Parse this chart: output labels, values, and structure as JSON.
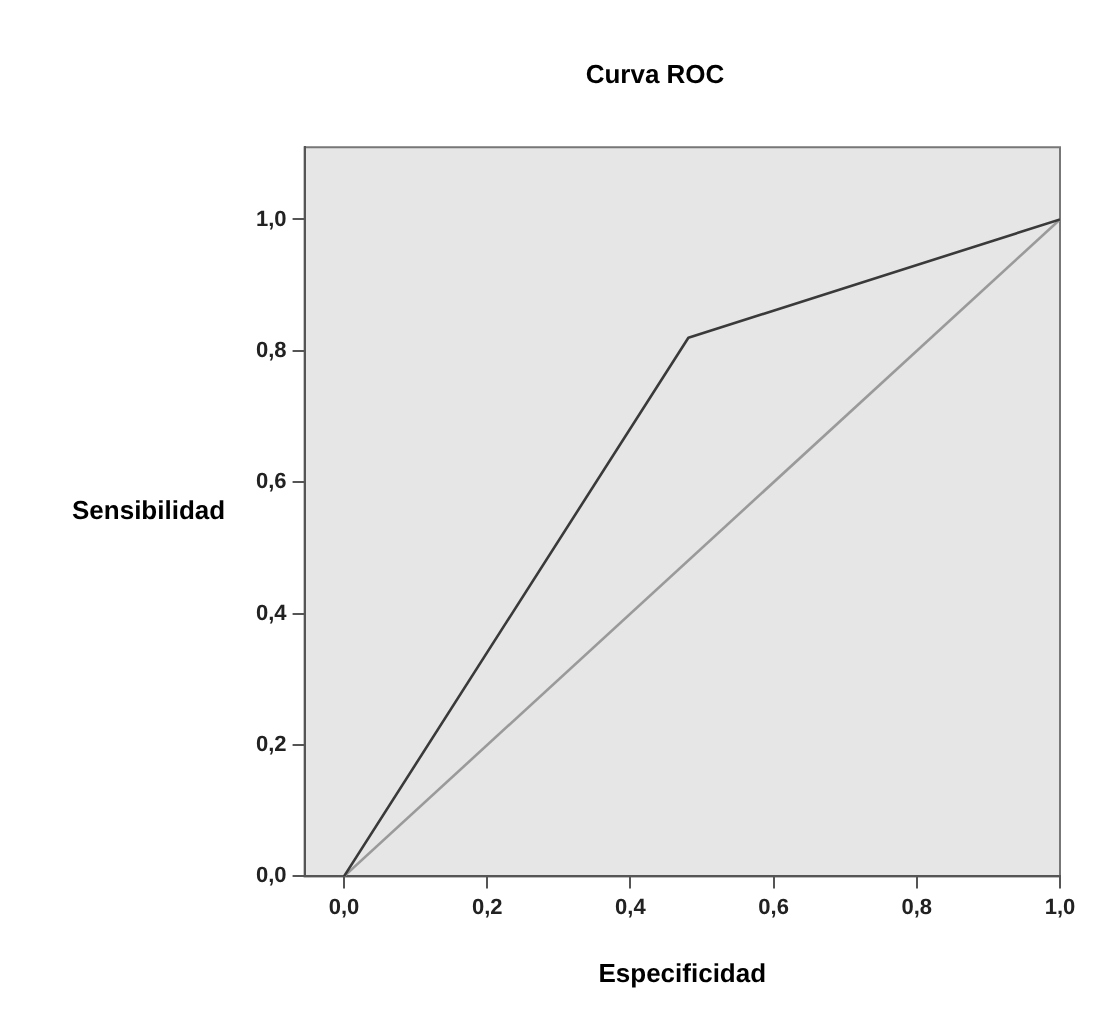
{
  "chart_data": {
    "type": "line",
    "title": "Curva ROC",
    "xlabel": "Especificidad",
    "ylabel": "Sensibilidad",
    "xlim": [
      -0.055,
      1.0
    ],
    "ylim": [
      0,
      1.11
    ],
    "xticks": [
      {
        "value": 0,
        "label": "0,0"
      },
      {
        "value": 0.2,
        "label": "0,2"
      },
      {
        "value": 0.4,
        "label": "0,4"
      },
      {
        "value": 0.6,
        "label": "0,6"
      },
      {
        "value": 0.8,
        "label": "0,8"
      },
      {
        "value": 1.0,
        "label": "1,0"
      }
    ],
    "yticks": [
      {
        "value": 0,
        "label": "0,0"
      },
      {
        "value": 0.2,
        "label": "0,2"
      },
      {
        "value": 0.4,
        "label": "0,4"
      },
      {
        "value": 0.6,
        "label": "0,6"
      },
      {
        "value": 0.8,
        "label": "0,8"
      },
      {
        "value": 1.0,
        "label": "1,0"
      }
    ],
    "grid": false,
    "legend": false,
    "marker": "none",
    "line_style": "solid",
    "series": [
      {
        "color": "#3a3a3a",
        "x": [
          0,
          0.481,
          1.0
        ],
        "values": [
          0,
          0.82,
          1.0
        ]
      },
      {
        "color": "#9a9a9a",
        "x": [
          0,
          1.0
        ],
        "values": [
          0,
          1.0
        ]
      }
    ]
  }
}
